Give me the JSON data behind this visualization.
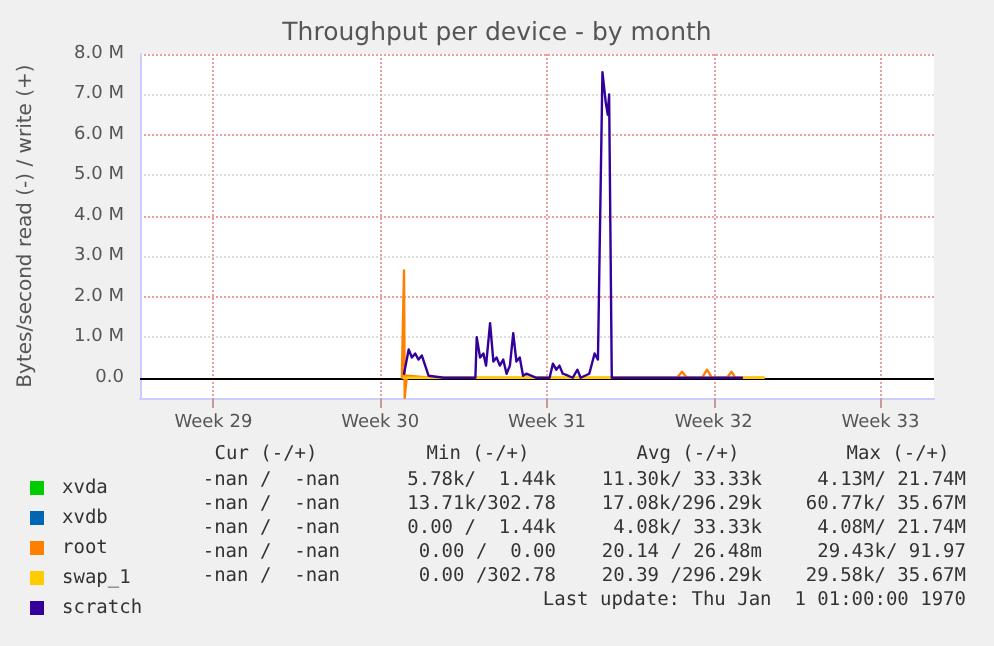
{
  "chart_data": {
    "type": "line",
    "title": "Throughput per device - by month",
    "ylabel": "Bytes/second read (-) / write (+)",
    "xlim": [
      "--07-15T10:00",
      "--08-17T18:00"
    ],
    "xticks": [
      {
        "value": "--07-18T12:00",
        "label": "Week 29"
      },
      {
        "value": "--07-25T12:00",
        "label": "Week 30"
      },
      {
        "value": "--08-01T12:00",
        "label": "Week 31"
      },
      {
        "value": "--08-08T12:00",
        "label": "Week 32"
      },
      {
        "value": "--08-15T12:00",
        "label": "Week 33"
      }
    ],
    "ylim": [
      -0.5,
      8
    ],
    "yticks": [
      {
        "value": 0,
        "label": "0.0"
      },
      {
        "value": 1,
        "label": "1.0 M"
      },
      {
        "value": 2,
        "label": "2.0 M"
      },
      {
        "value": 3,
        "label": "3.0 M"
      },
      {
        "value": 4,
        "label": "4.0 M"
      },
      {
        "value": 5,
        "label": "5.0 M"
      },
      {
        "value": 6,
        "label": "6.0 M"
      },
      {
        "value": 7,
        "label": "7.0 M"
      },
      {
        "value": 8,
        "label": "8.0 M"
      }
    ],
    "grid": true,
    "legend": "bottom left",
    "marker": "none",
    "line_style": "solid",
    "ref_lines": [
      {
        "axis": "y",
        "value": 0,
        "color": "#000000"
      }
    ],
    "series": [
      {
        "name": "xvda",
        "color": "#00cc00"
      },
      {
        "name": "xvdb",
        "color": "#0066b3"
      },
      {
        "name": "root",
        "color": "#ff8000",
        "x": [
          "--07-26T09:50",
          "--07-26T12:00",
          "--07-26T12:42",
          "--07-26T14:53",
          "--07-27T14:24",
          "--08-06T23:02",
          "--08-07T04:05",
          "--08-07T09:07",
          "--08-08T00:14",
          "--08-08T05:17",
          "--08-08T10:19",
          "--08-09T01:26",
          "--08-09T05:59",
          "--08-09T09:50",
          "--08-10T14:24"
        ],
        "values": [
          0,
          2.65,
          -0.5,
          0.05,
          0,
          0,
          0.15,
          0,
          0,
          0.2,
          0,
          0,
          0.15,
          0,
          0
        ]
      },
      {
        "name": "swap_1",
        "color": "#ffcc00",
        "x": [
          "--07-26T11:30",
          "--07-29T16:48",
          "--08-02T21:36",
          "--08-10T14:24"
        ],
        "values": [
          0,
          0,
          0,
          0
        ]
      },
      {
        "name": "scratch",
        "color": "#330099",
        "x": [
          "--07-26T12:00",
          "--07-26T16:44",
          "--07-26T19:55",
          "--07-26T23:17",
          "--07-27T02:38",
          "--07-27T06:00",
          "--07-27T09:22",
          "--07-27T12:43",
          "--07-28T04:00",
          "--07-29T11:56",
          "--07-29T13:16",
          "--07-29T16:38",
          "--07-29T20:00",
          "--07-29T22:41",
          "--07-30T02:43",
          "--07-30T06:04",
          "--07-30T09:15",
          "--07-30T12:37",
          "--07-30T15:58",
          "--07-30T19:20",
          "--07-30T22:42",
          "--07-31T02:03",
          "--07-31T05:15",
          "--07-31T08:36",
          "--07-31T11:58",
          "--07-31T15:20",
          "--08-01T01:25",
          "--08-01T14:41",
          "--08-01T18:03",
          "--08-01T21:24",
          "--08-02T00:36",
          "--08-02T03:58",
          "--08-02T09:20",
          "--08-02T14:02",
          "--08-02T18:45",
          "--08-02T21:56",
          "--08-03T06:40",
          "--08-03T12:03",
          "--08-03T15:24",
          "--08-03T19:56",
          "--08-03T23:18",
          "--08-04T01:19",
          "--08-04T02:40",
          "--08-04T05:21",
          "--08-09T16:34"
        ],
        "values": [
          0.1,
          0.7,
          0.5,
          0.6,
          0.45,
          0.55,
          0.3,
          0.05,
          0,
          0,
          1,
          0.5,
          0.6,
          0.3,
          1.35,
          0.4,
          0.5,
          0.3,
          0.45,
          0.1,
          0.3,
          1.1,
          0.4,
          0.5,
          0.05,
          0.1,
          0,
          0,
          0.35,
          0.2,
          0.3,
          0.1,
          0.05,
          0,
          0.2,
          0,
          0.1,
          0.6,
          0.45,
          7.55,
          6.8,
          6.5,
          7,
          0,
          0
        ]
      }
    ],
    "annotations": [
      "Cur (-/+)",
      "Min (-/+)",
      "Avg (-/+)",
      "Max (-/+)",
      "-nan /  -nan",
      "5.78k/  1.44k",
      "11.30k/ 33.33k",
      "4.13M/ 21.74M",
      "-nan /  -nan",
      "13.71k/302.78",
      "17.08k/296.29k",
      "60.77k/ 35.67M",
      "-nan /  -nan",
      "0.00 /  1.44k",
      "4.08k/ 33.33k",
      "4.08M/ 21.74M",
      "-nan /  -nan",
      "0.00 /  0.00",
      "20.14 / 26.48m",
      "29.43k/ 91.97",
      "-nan /  -nan",
      "0.00 /302.78",
      "20.39 /296.29k",
      "29.58k/ 35.67M",
      "Last update: Thu Jan  1 01:00:00 1970"
    ]
  }
}
